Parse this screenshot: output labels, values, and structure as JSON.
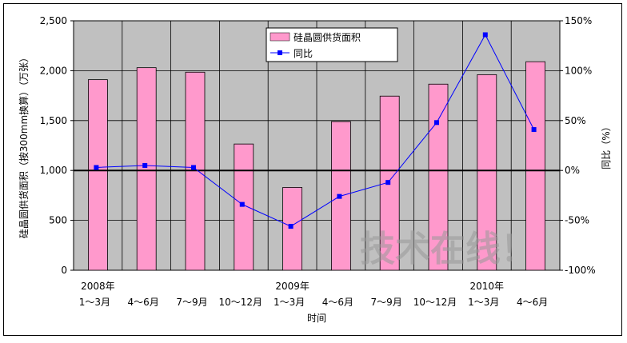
{
  "chart_data": {
    "type": "bar",
    "categories": [
      "1～3月",
      "4～6月",
      "7～9月",
      "10～12月",
      "1～3月",
      "4～6月",
      "7～9月",
      "10～12月",
      "1～3月",
      "4～6月"
    ],
    "category_years": [
      "2008年",
      "",
      "",
      "",
      "2009年",
      "",
      "",
      "",
      "2010年",
      ""
    ],
    "xlabel": "时间",
    "ylabel": "硅晶圆供货面积（按300mm换算）（万张）",
    "y2label": "同比（%）",
    "ylim": [
      0,
      2500
    ],
    "y2lim": [
      -100,
      150
    ],
    "yticks": [
      "0",
      "500",
      "1,000",
      "1,500",
      "2,000",
      "2,500"
    ],
    "y2ticks": [
      "-100%",
      "-50%",
      "0%",
      "50%",
      "100%",
      "150%"
    ],
    "grid": true,
    "legend_placement": "top-center",
    "series": [
      {
        "name": "硅晶圆供货面积",
        "type": "bar",
        "axis": "left",
        "color": "#ff99cc",
        "values": [
          1910,
          2030,
          1985,
          1265,
          830,
          1490,
          1745,
          1865,
          1960,
          2090
        ]
      },
      {
        "name": "同比",
        "type": "line",
        "axis": "right",
        "color": "#0000ff",
        "values": [
          3,
          5,
          3,
          -34,
          -56,
          -26,
          -12,
          48,
          136,
          41
        ]
      }
    ],
    "plot_background": "#c0c0c0",
    "watermark": "技术在线！"
  }
}
